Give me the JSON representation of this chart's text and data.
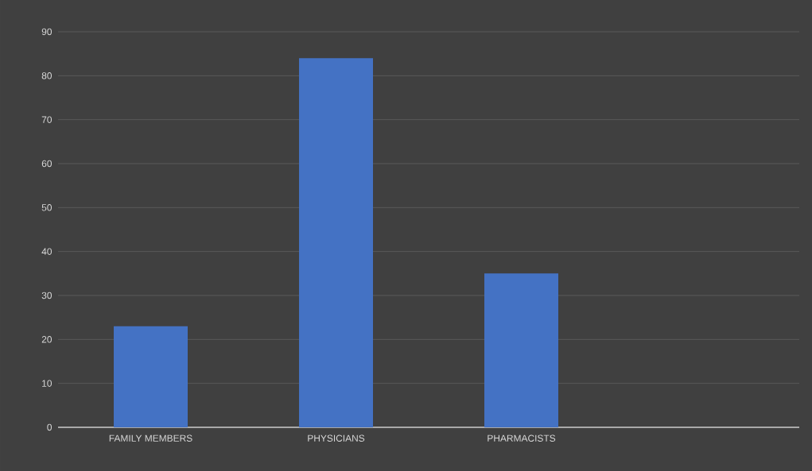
{
  "chart_data": {
    "type": "bar",
    "categories": [
      "FAMILY MEMBERS",
      "PHYSICIANS",
      "PHARMACISTS",
      null
    ],
    "values": [
      23,
      84,
      35,
      null
    ],
    "color": "#4472c4",
    "ylim": [
      0,
      90
    ],
    "yticks": [
      0,
      10,
      20,
      30,
      40,
      50,
      60,
      70,
      80,
      90
    ],
    "grid": "y"
  }
}
